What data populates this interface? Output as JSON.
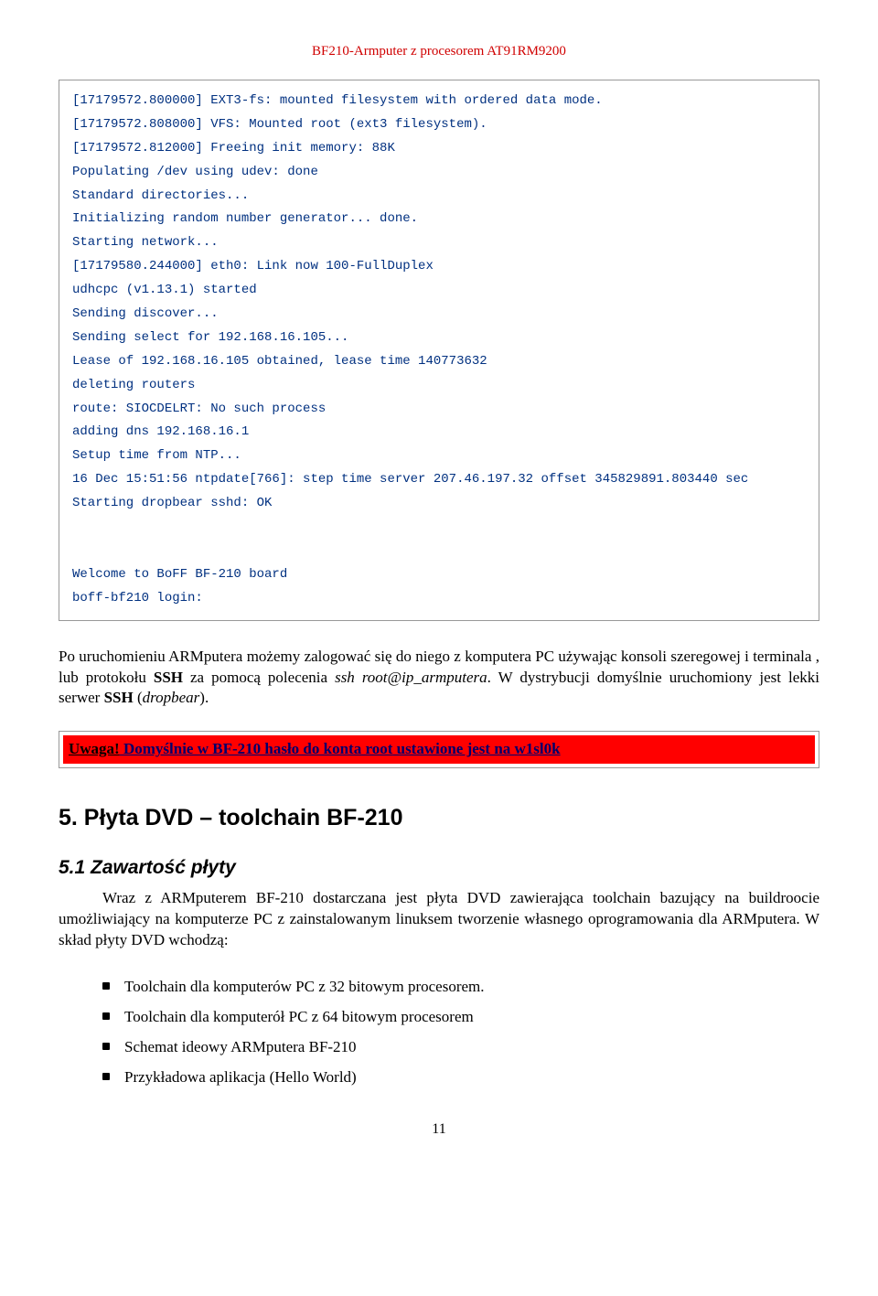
{
  "header": "BF210-Armputer z procesorem AT91RM9200",
  "code": "[17179572.800000] EXT3-fs: mounted filesystem with ordered data mode.\n[17179572.808000] VFS: Mounted root (ext3 filesystem).\n[17179572.812000] Freeing init memory: 88K\nPopulating /dev using udev: done\nStandard directories...\nInitializing random number generator... done.\nStarting network...\n[17179580.244000] eth0: Link now 100-FullDuplex\nudhcpc (v1.13.1) started\nSending discover...\nSending select for 192.168.16.105...\nLease of 192.168.16.105 obtained, lease time 140773632\ndeleting routers\nroute: SIOCDELRT: No such process\nadding dns 192.168.16.1\nSetup time from NTP...\n16 Dec 15:51:56 ntpdate[766]: step time server 207.46.197.32 offset 345829891.803440 sec\nStarting dropbear sshd: OK\n\n\nWelcome to BoFF BF-210 board\nboff-bf210 login:",
  "para1": {
    "pre": "Po uruchomieniu ARMputera możemy zalogować się do niego z komputera PC używając konsoli szeregowej i terminala , lub protokołu ",
    "b1": "SSH",
    "mid1": " za pomocą polecenia ",
    "i1": "ssh root@ip_armputera",
    "mid2": ". W dystrybucji domyślnie uruchomiony jest lekki serwer ",
    "b2": "SSH",
    "post": " (",
    "i2": "dropbear",
    "end": ")."
  },
  "alert": {
    "label": "Uwaga!",
    "pre": " Domyślnie w BF-210 hasło do konta ",
    "b1": "root",
    "mid": " ustawione jest na ",
    "b2": "w1sl0k"
  },
  "section": "5. Płyta DVD – toolchain BF-210",
  "subsection": "5.1 Zawartość płyty",
  "para2": "Wraz z ARMputerem BF-210 dostarczana jest płyta DVD zawierająca toolchain bazujący na buildroocie umożliwiający na komputerze PC z zainstalowanym linuksem tworzenie własnego oprogramowania dla ARMputera. W skład płyty DVD wchodzą:",
  "bullets": [
    "Toolchain dla komputerów PC z 32 bitowym procesorem.",
    "Toolchain dla komputerół PC z 64 bitowym procesorem",
    "Schemat ideowy ARMputera BF-210",
    "Przykładowa aplikacja (Hello World)"
  ],
  "pagenum": "11"
}
